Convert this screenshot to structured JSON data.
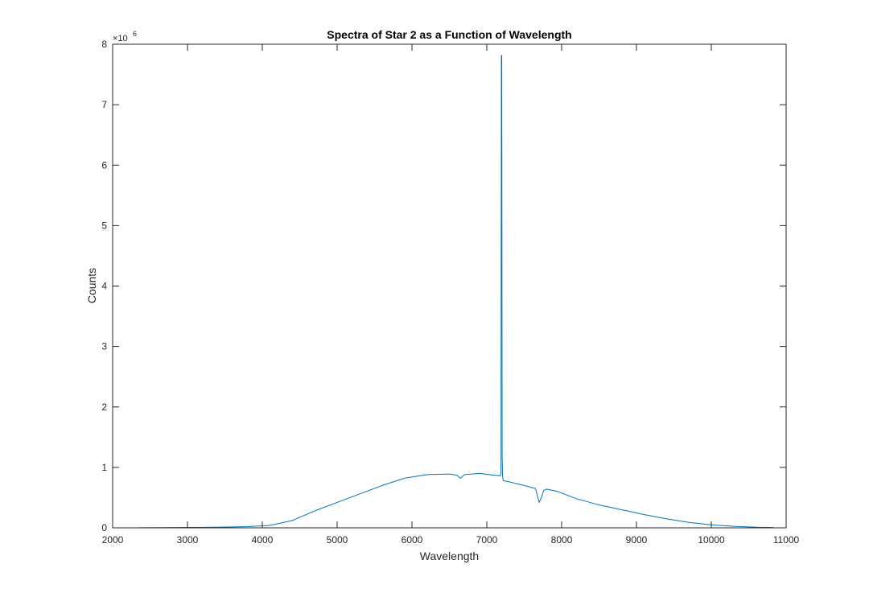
{
  "chart_data": {
    "type": "line",
    "title": "Spectra of Star 2 as a Function of Wavelength",
    "xlabel": "Wavelength",
    "ylabel": "Counts",
    "xlim": [
      2000,
      11000
    ],
    "ylim": [
      0,
      8000000
    ],
    "y_exponent_label": "×10",
    "y_exponent_power": "6",
    "x_ticks": [
      2000,
      3000,
      4000,
      5000,
      6000,
      7000,
      8000,
      9000,
      10000,
      11000
    ],
    "y_ticks": [
      0,
      1,
      2,
      3,
      4,
      5,
      6,
      7,
      8
    ],
    "grid": false,
    "line_color": "#0072BD",
    "series": [
      {
        "x": [
          2330,
          2600,
          3000,
          3400,
          3800,
          4100,
          4400,
          4700,
          5000,
          5300,
          5600,
          5900,
          6200,
          6500,
          6600,
          6650,
          6700,
          6900,
          7100,
          7180,
          7190,
          7195,
          7200,
          7205,
          7210,
          7220,
          7300,
          7500,
          7650,
          7700,
          7730,
          7760,
          7800,
          7950,
          8200,
          8500,
          8800,
          9100,
          9400,
          9700,
          10000,
          10300,
          10600,
          10830
        ],
        "y": [
          1500,
          3000,
          6000,
          10000,
          20000,
          40000,
          120000,
          280000,
          420000,
          560000,
          700000,
          820000,
          880000,
          890000,
          870000,
          820000,
          880000,
          900000,
          870000,
          860000,
          900000,
          7820000,
          7800000,
          1200000,
          850000,
          780000,
          760000,
          700000,
          650000,
          420000,
          500000,
          620000,
          640000,
          600000,
          480000,
          380000,
          300000,
          220000,
          150000,
          90000,
          50000,
          25000,
          10000,
          5000
        ]
      }
    ]
  }
}
